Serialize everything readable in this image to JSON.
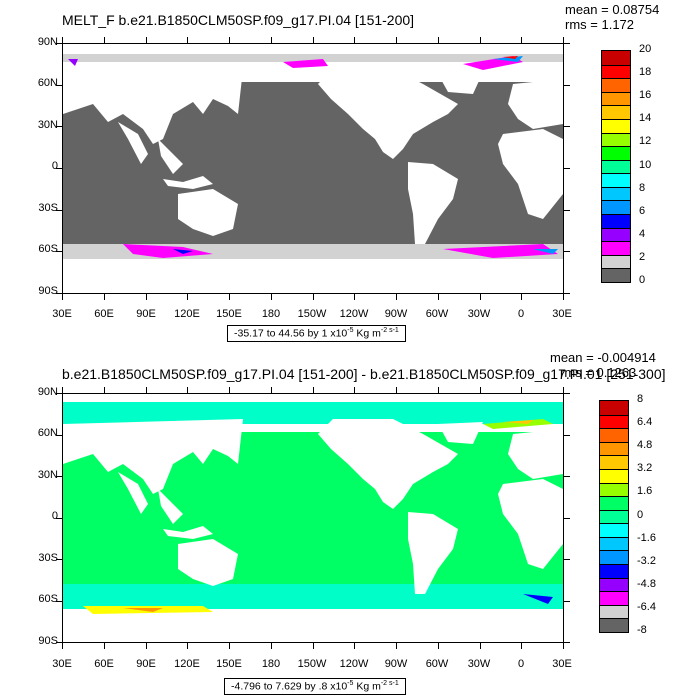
{
  "panels": [
    {
      "title": "MELT_F b.e21.B1850CLM50SP.f09_g17.PI.04 [151-200]",
      "mean_label": "mean = 0.08754",
      "rms_label": "rms = 1.172",
      "range_label_prefix": "-35.17 to 44.56 by 1 x10",
      "range_exponent": "-5",
      "range_units": " Kg m",
      "range_units_exp": "-2 s-1",
      "colorbar_labels": [
        "20",
        "18",
        "16",
        "14",
        "12",
        "10",
        "8",
        "6",
        "4",
        "2",
        "0"
      ],
      "colorbar_colors": [
        "#c80000",
        "#ff0000",
        "#ff6400",
        "#ff9600",
        "#ffc800",
        "#ffff00",
        "#96ff00",
        "#00ff00",
        "#00ff96",
        "#00ffff",
        "#00c8ff",
        "#0096ff",
        "#0000ff",
        "#9600ff",
        "#ff00ff",
        "#d2d2d2",
        "#646464"
      ]
    },
    {
      "title": "b.e21.B1850CLM50SP.f09_g17.PI.04 [151-200] - b.e21.B1850CLM50SP.f09_g17.PI.01 [251-300]",
      "mean_label": "mean = -0.004914",
      "rms_label": "rms = 0.1263",
      "range_label_prefix": "-4.796 to 7.629 by .8 x10",
      "range_exponent": "-5",
      "range_units": " Kg m",
      "range_units_exp": "-2 s-1",
      "colorbar_labels": [
        "8",
        "6.4",
        "4.8",
        "3.2",
        "1.6",
        "0",
        "-1.6",
        "-3.2",
        "-4.8",
        "-6.4",
        "-8"
      ],
      "colorbar_colors": [
        "#c80000",
        "#ff0000",
        "#ff6400",
        "#ff9600",
        "#ffc800",
        "#ffff00",
        "#96ff00",
        "#00ff64",
        "#00ff96",
        "#00ffff",
        "#00c8ff",
        "#0096ff",
        "#0000ff",
        "#9600ff",
        "#ff00ff",
        "#d2d2d2",
        "#646464"
      ]
    }
  ],
  "lat_labels": [
    "90N",
    "60N",
    "30N",
    "0",
    "30S",
    "60S",
    "90S"
  ],
  "lon_labels": [
    "30E",
    "60E",
    "90E",
    "120E",
    "150E",
    "180",
    "150W",
    "120W",
    "90W",
    "60W",
    "30W",
    "0",
    "30E"
  ],
  "colors": {
    "ocean_top": "#646464",
    "land": "#ffffff",
    "ocean_bottom": "#00ff64",
    "band_cyan": "#00ffc8",
    "light_gray": "#d2d2d2",
    "magenta": "#ff00ff"
  }
}
